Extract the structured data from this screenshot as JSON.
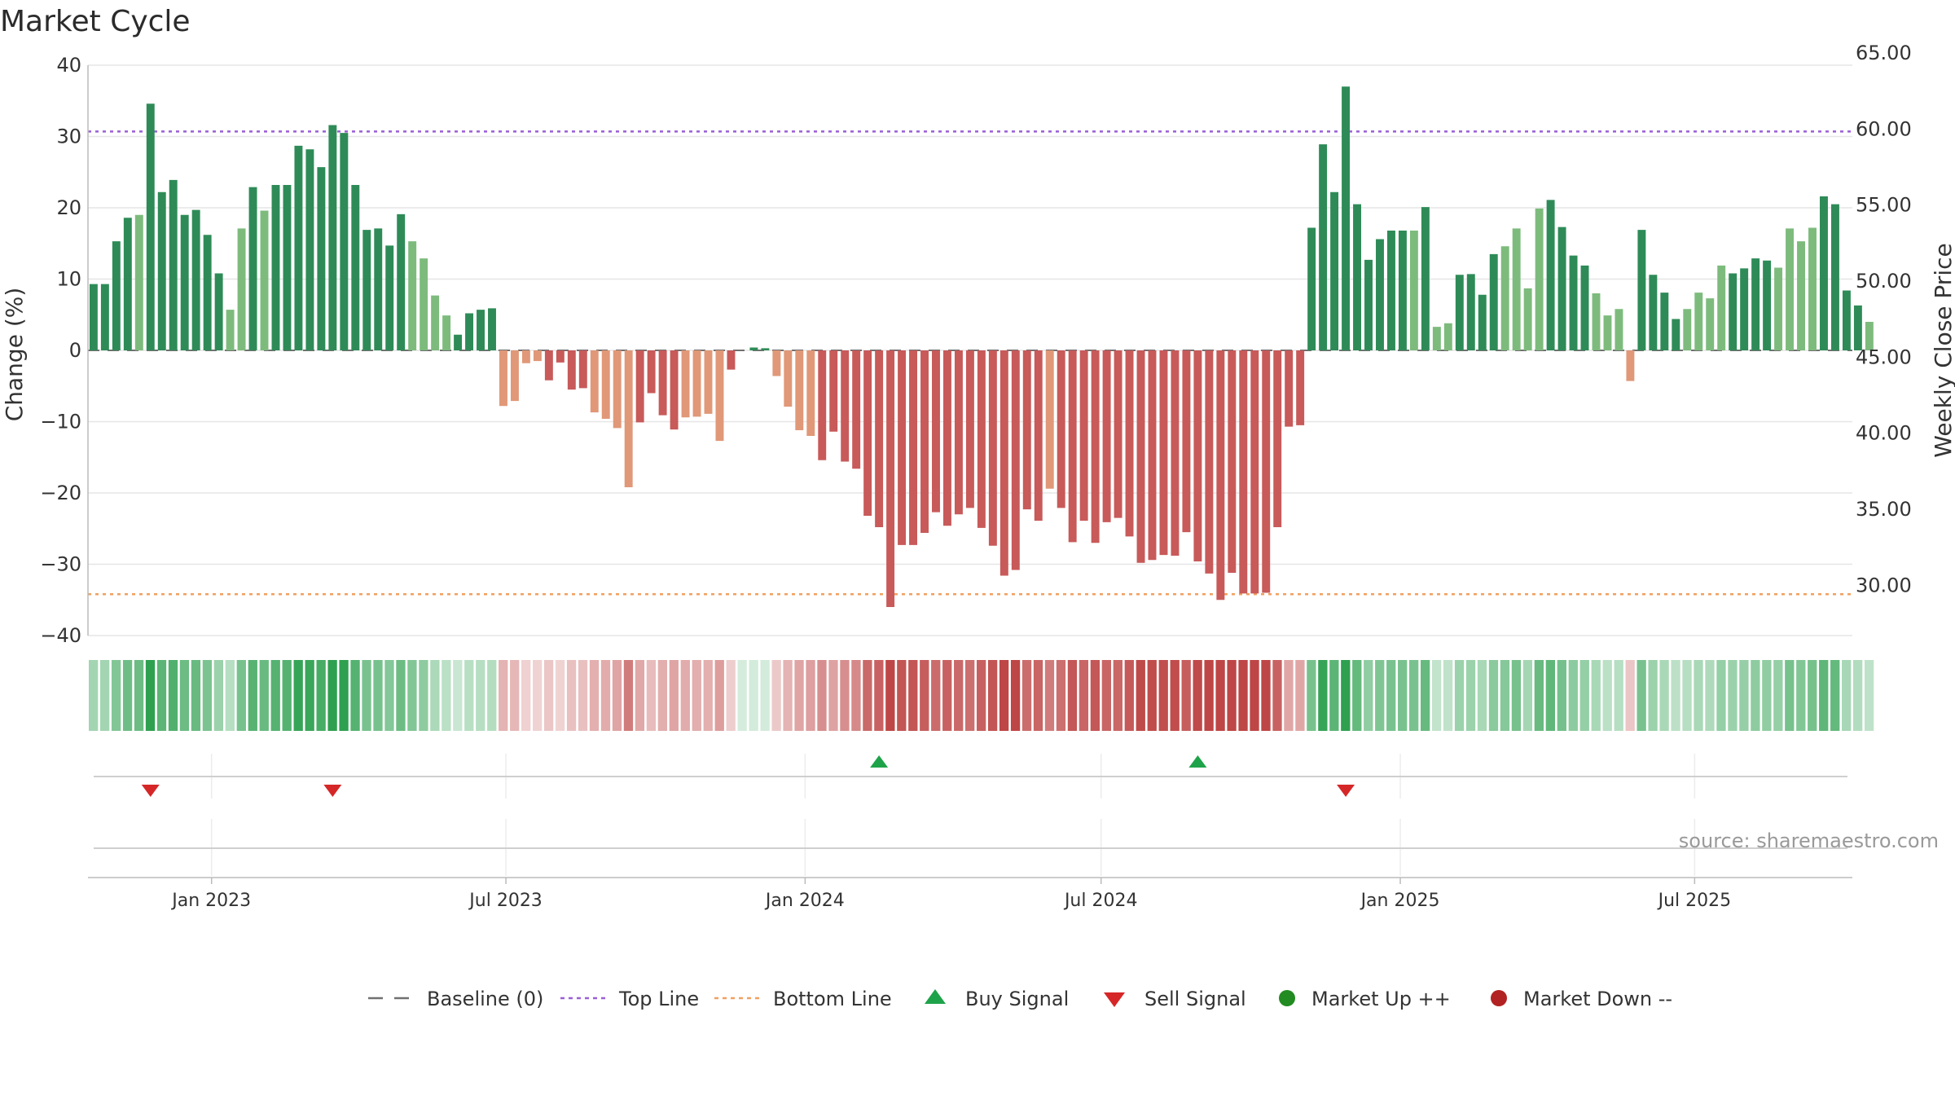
{
  "chart_data": {
    "type": "bar",
    "title": "Market Cycle",
    "ylabel": "Change (%)",
    "y2label": "Weekly Close Price",
    "ylim": [
      -40,
      40
    ],
    "yticks": [
      40,
      30,
      20,
      10,
      0,
      -10,
      -20,
      -30,
      -40
    ],
    "y2lim": [
      26.7,
      64.2
    ],
    "y2ticks": [
      "65.00",
      "60.00",
      "55.00",
      "50.00",
      "45.00",
      "40.00",
      "35.00",
      "30.00"
    ],
    "y2tick_values": [
      65,
      60,
      55,
      50,
      45,
      40,
      35,
      30
    ],
    "xlim": [
      "2022-10-17",
      "2025-10-06"
    ],
    "xticks": [
      {
        "label": "Jan 2023",
        "date": "2023-01-01"
      },
      {
        "label": "Jul 2023",
        "date": "2023-07-01"
      },
      {
        "label": "Jan 2024",
        "date": "2024-01-01"
      },
      {
        "label": "Jul 2024",
        "date": "2024-07-01"
      },
      {
        "label": "Jan 2025",
        "date": "2025-01-01"
      },
      {
        "label": "Jul 2025",
        "date": "2025-07-01"
      }
    ],
    "top_line": 30.7,
    "bottom_line": -34.2,
    "start_week": "2022-10-17",
    "values": [
      9.3,
      9.3,
      15.3,
      18.6,
      19.0,
      34.6,
      22.2,
      23.9,
      19.0,
      19.7,
      16.2,
      10.8,
      5.7,
      17.1,
      22.9,
      19.6,
      23.2,
      23.2,
      28.7,
      28.2,
      25.7,
      31.6,
      30.5,
      23.2,
      16.9,
      17.1,
      14.7,
      19.1,
      15.3,
      12.9,
      7.7,
      4.9,
      2.2,
      5.2,
      5.7,
      5.9,
      -7.8,
      -7.1,
      -1.8,
      -1.5,
      -4.2,
      -1.7,
      -5.5,
      -5.3,
      -8.7,
      -9.6,
      -10.9,
      -19.2,
      -10.1,
      -6.0,
      -9.1,
      -11.1,
      -9.4,
      -9.3,
      -8.9,
      -12.7,
      -2.7,
      0,
      0.4,
      0.3,
      -3.6,
      -7.9,
      -11.2,
      -12.0,
      -15.4,
      -11.4,
      -15.6,
      -16.6,
      -23.2,
      -24.8,
      -36.0,
      -27.3,
      -27.3,
      -25.6,
      -22.7,
      -24.6,
      -23.0,
      -22.1,
      -24.9,
      -27.4,
      -31.6,
      -30.8,
      -22.3,
      -23.9,
      -19.4,
      -22.1,
      -26.9,
      -23.9,
      -27.0,
      -24.1,
      -23.5,
      -26.1,
      -29.8,
      -29.4,
      -28.7,
      -28.8,
      -25.5,
      -29.6,
      -31.3,
      -35.0,
      -31.2,
      -34.1,
      -34.1,
      -34.0,
      -24.8,
      -10.7,
      -10.5,
      17.2,
      28.9,
      22.2,
      37.0,
      20.5,
      12.7,
      15.6,
      16.8,
      16.8,
      16.8,
      20.1,
      3.3,
      3.8,
      10.6,
      10.7,
      7.8,
      13.5,
      14.6,
      17.1,
      8.7,
      19.9,
      21.1,
      17.3,
      13.3,
      11.9,
      8.0,
      4.9,
      5.8,
      -4.3,
      16.9,
      10.6,
      8.1,
      4.4,
      5.8,
      8.1,
      7.3,
      11.9,
      10.8,
      11.5,
      12.9,
      12.6,
      11.6,
      17.1,
      15.3,
      17.2,
      21.6,
      20.5,
      8.4,
      6.3,
      4.0
    ],
    "buy_signals": [
      "2024-02-12",
      "2024-08-26"
    ],
    "sell_signals": [
      "2022-11-21",
      "2023-03-13",
      "2024-11-25"
    ],
    "legend": [
      {
        "label": "Baseline (0)",
        "symbol": "dash",
        "color": "#707070"
      },
      {
        "label": "Top Line",
        "symbol": "dots",
        "color": "#9b5fd6"
      },
      {
        "label": "Bottom Line",
        "symbol": "dots",
        "color": "#f0a060"
      },
      {
        "label": "Buy Signal",
        "symbol": "triangle-up",
        "color": "#1fa34a"
      },
      {
        "label": "Sell Signal",
        "symbol": "triangle-down",
        "color": "#d62728"
      },
      {
        "label": "Market Up ++",
        "symbol": "circle",
        "color": "#228b22"
      },
      {
        "label": "Market Down --",
        "symbol": "circle",
        "color": "#b22222"
      }
    ],
    "source": "source: sharemaestro.com",
    "colors": {
      "up_strong": "#2e8b57",
      "up_weak": "#7dbb7d",
      "down_strong": "#c85a5a",
      "down_weak": "#e09878",
      "grid": "#e6e6e6",
      "axis": "#bbbbbb"
    }
  }
}
